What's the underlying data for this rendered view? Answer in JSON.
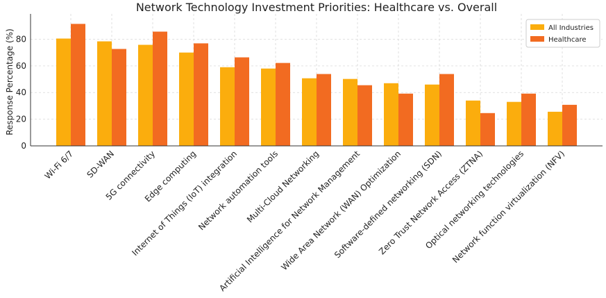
{
  "chart_data": {
    "type": "bar",
    "title": "Network Technology Investment Priorities: Healthcare vs. Overall",
    "y_label": "Response Percentage (%)",
    "categories": [
      "Wi-Fi 6/7",
      "SD-WAN",
      "5G connectivity",
      "Edge computing",
      "Internet of Things (IoT) integration",
      "Network automation tools",
      "Multi-Cloud Networking",
      "Artificial Intelligence for Network Management",
      "Wide Area Network (WAN) Optimization",
      "Software-defined networking (SDN)",
      "Zero Trust Network Access (ZTNA)",
      "Optical networking technologies",
      "Network function virtualization (NFV)"
    ],
    "series": [
      {
        "name": "All Industries",
        "color": "#fbad0d",
        "values": [
          80.5,
          78.4,
          75.8,
          70,
          59,
          58,
          50.7,
          50.2,
          47,
          46,
          34,
          33,
          25.6
        ]
      },
      {
        "name": "Healthcare",
        "color": "#f26b21",
        "values": [
          91.5,
          72.7,
          85.7,
          76.9,
          66.4,
          62.2,
          53.9,
          45.5,
          39.2,
          53.9,
          24.6,
          39.2,
          30.8
        ]
      }
    ],
    "ylim": [
      0,
      99
    ],
    "yticks": [
      0,
      20,
      40,
      60,
      80
    ],
    "grid": true,
    "legend": "upper-right"
  }
}
